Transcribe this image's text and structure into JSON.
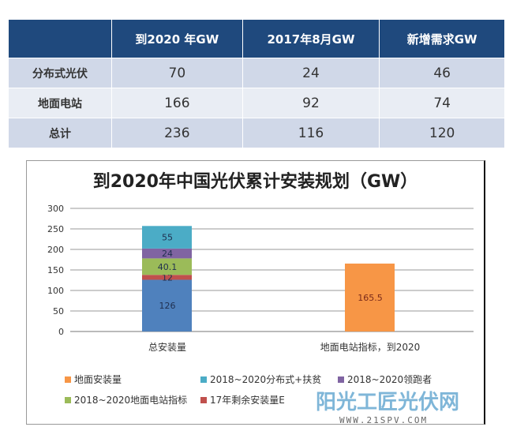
{
  "table": {
    "headers": [
      "",
      "到2020 年GW",
      "2017年8月GW",
      "新增需求GW"
    ],
    "rows": [
      [
        "分布式光伏",
        "70",
        "24",
        "46"
      ],
      [
        "地面电站",
        "166",
        "92",
        "74"
      ],
      [
        "总计",
        "236",
        "116",
        "120"
      ]
    ]
  },
  "chart_data": {
    "type": "bar",
    "stacked": true,
    "title": "到2020年中国光伏累计安装规划（GW）",
    "categories": [
      "总安装量",
      "地面电站指标，到2020"
    ],
    "ylim": [
      0,
      300
    ],
    "yticks": [
      0,
      50,
      100,
      150,
      200,
      250,
      300
    ],
    "grid": true,
    "legend": "bottom",
    "series": [
      {
        "name": "",
        "color": "#4f81bd",
        "values": [
          126,
          0
        ]
      },
      {
        "name": "17年剩余安装量E",
        "color": "#c0504d",
        "values": [
          12,
          0
        ]
      },
      {
        "name": "2018~2020地面电站指标",
        "color": "#9bbb59",
        "values": [
          40.1,
          0
        ]
      },
      {
        "name": "2018~2020领跑者",
        "color": "#8064a2",
        "values": [
          24,
          0
        ]
      },
      {
        "name": "2018~2020分布式+扶贫",
        "color": "#4bacc6",
        "values": [
          55,
          0
        ]
      },
      {
        "name": "地面安装量",
        "color": "#f79646",
        "values": [
          0,
          165.5
        ]
      }
    ],
    "legend_order": [
      5,
      4,
      3,
      2,
      1
    ]
  },
  "watermark": {
    "text": "阳光工匠光伏网",
    "url": "WWW.21SPV.COM"
  }
}
